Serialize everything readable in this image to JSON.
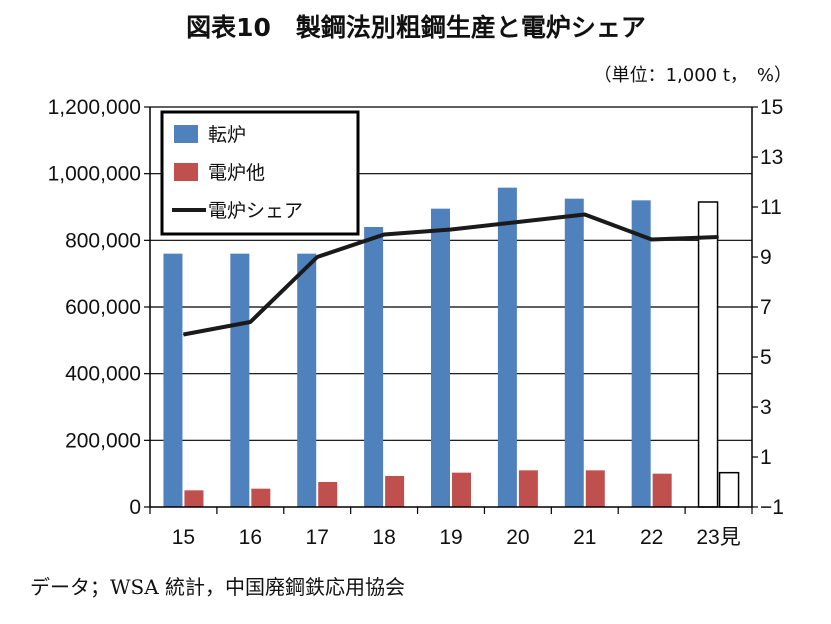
{
  "title": "図表10　製鋼法別粗鋼生産と電炉シェア",
  "unit_note": "（単位：1,000 t，　%）",
  "source": "データ；WSA 統計，中国廃鋼鉄応用協会",
  "colors": {
    "converter": "#4f81bd",
    "electric": "#c0504d",
    "share_line": "#1a1a1a",
    "forecast_outline": "#000000"
  },
  "chart_data": {
    "type": "bar",
    "categories": [
      "15",
      "16",
      "17",
      "18",
      "19",
      "20",
      "21",
      "22",
      "23見"
    ],
    "series": [
      {
        "name": "転炉",
        "axis": "left",
        "values": [
          760000,
          760000,
          760000,
          840000,
          895000,
          958000,
          925000,
          920000,
          915000
        ]
      },
      {
        "name": "電炉他",
        "axis": "left",
        "values": [
          50000,
          55000,
          75000,
          93000,
          103000,
          110000,
          110000,
          100000,
          103000
        ]
      },
      {
        "name": "電炉シェア",
        "axis": "right",
        "type": "line",
        "values": [
          5.9,
          6.4,
          9.0,
          9.9,
          10.1,
          10.4,
          10.7,
          9.7,
          9.8
        ]
      }
    ],
    "forecast_category": "23見",
    "left_axis": {
      "ylim": [
        0,
        1200000
      ],
      "ticks": [
        "0",
        "200,000",
        "400,000",
        "600,000",
        "800,000",
        "1,000,000",
        "1,200,000"
      ],
      "tick_values": [
        0,
        200000,
        400000,
        600000,
        800000,
        1000000,
        1200000
      ]
    },
    "right_axis": {
      "ylim": [
        -1,
        15
      ],
      "ticks": [
        "−1",
        "1",
        "3",
        "5",
        "7",
        "9",
        "11",
        "13",
        "15"
      ],
      "tick_values": [
        -1,
        1,
        3,
        5,
        7,
        9,
        11,
        13,
        15
      ]
    },
    "grid": true,
    "legend_position": "top-left"
  }
}
